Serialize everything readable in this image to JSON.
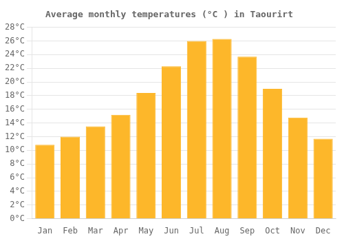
{
  "chart_data": {
    "type": "bar",
    "title": "Average monthly temperatures (°C ) in Taourirt",
    "categories": [
      "Jan",
      "Feb",
      "Mar",
      "Apr",
      "May",
      "Jun",
      "Jul",
      "Aug",
      "Sep",
      "Oct",
      "Nov",
      "Dec"
    ],
    "values": [
      10.8,
      12.0,
      13.5,
      15.2,
      18.4,
      22.3,
      26.0,
      26.3,
      23.7,
      19.0,
      14.8,
      11.7
    ],
    "color": "#FDB72A",
    "ylim": [
      0,
      28
    ],
    "yticks": [
      {
        "value": 0,
        "label": "0°C"
      },
      {
        "value": 2,
        "label": "2°C"
      },
      {
        "value": 4,
        "label": "4°C"
      },
      {
        "value": 6,
        "label": "6°C"
      },
      {
        "value": 8,
        "label": "8°C"
      },
      {
        "value": 10,
        "label": "10°C"
      },
      {
        "value": 12,
        "label": "12°C"
      },
      {
        "value": 14,
        "label": "14°C"
      },
      {
        "value": 16,
        "label": "16°C"
      },
      {
        "value": 18,
        "label": "18°C"
      },
      {
        "value": 20,
        "label": "20°C"
      },
      {
        "value": 22,
        "label": "22°C"
      },
      {
        "value": 24,
        "label": "24°C"
      },
      {
        "value": 26,
        "label": "26°C"
      },
      {
        "value": 28,
        "label": "28°C"
      }
    ],
    "grid": true
  }
}
